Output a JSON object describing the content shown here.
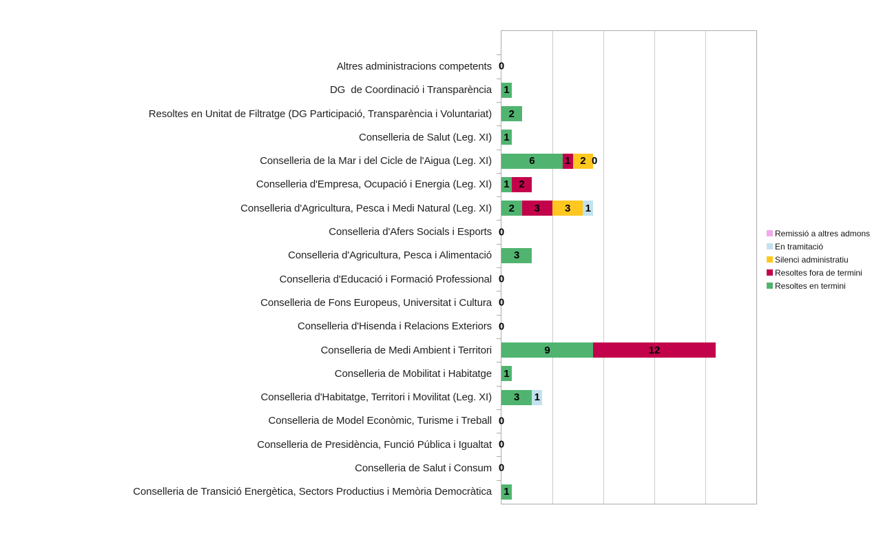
{
  "chart_data": {
    "type": "bar",
    "orientation": "horizontal",
    "stacked": true,
    "title": "",
    "xlabel": "",
    "ylabel": "",
    "xlim": [
      0,
      25
    ],
    "x_grid_interval": 5,
    "grid": true,
    "legend_position": "right-middle",
    "categories": [
      "Altres administracions competents",
      "DG  de Coordinació i Transparència",
      "Resoltes en Unitat de Filtratge (DG Participació, Transparència i Voluntariat)",
      "Conselleria de Salut (Leg. XI)",
      "Conselleria de la Mar i del Cicle de l'Aigua (Leg. XI)",
      "Conselleria d'Empresa, Ocupació i Energia (Leg. XI)",
      "Conselleria d'Agricultura, Pesca i Medi Natural (Leg. XI)",
      "Conselleria d'Afers Socials i Esports",
      "Conselleria d'Agricultura, Pesca i Alimentació",
      "Conselleria d'Educació i Formació Professional",
      "Conselleria de Fons Europeus, Universitat i Cultura",
      "Conselleria d'Hisenda i Relacions Exteriors",
      "Conselleria de Medi Ambient i Territori",
      "Conselleria de Mobilitat i Habitatge",
      "Conselleria d'Habitatge, Territori i Movilitat (Leg. XI)",
      "Conselleria de Model Econòmic, Turisme i Treball",
      "Conselleria de Presidència, Funció Pública i Igualtat",
      "Conselleria de Salut i Consum",
      "Conselleria de Transició Energètica, Sectors Productius i Memòria Democràtica"
    ],
    "series": [
      {
        "name": "Resoltes en termini",
        "color": "#50B470",
        "values": [
          0,
          1,
          2,
          1,
          6,
          1,
          2,
          0,
          3,
          0,
          0,
          0,
          9,
          1,
          3,
          0,
          0,
          0,
          1
        ]
      },
      {
        "name": "Resoltes fora de termini",
        "color": "#C2024B",
        "values": [
          0,
          0,
          0,
          0,
          1,
          2,
          3,
          0,
          0,
          0,
          0,
          0,
          12,
          0,
          0,
          0,
          0,
          0,
          0
        ]
      },
      {
        "name": "Silenci administratiu",
        "color": "#FFC71F",
        "values": [
          0,
          0,
          0,
          0,
          2,
          0,
          3,
          0,
          0,
          0,
          0,
          0,
          0,
          0,
          0,
          0,
          0,
          0,
          0
        ]
      },
      {
        "name": "En tramitació",
        "color": "#C2E2ED",
        "values": [
          0,
          0,
          0,
          0,
          0,
          0,
          1,
          0,
          0,
          0,
          0,
          0,
          0,
          0,
          1,
          0,
          0,
          0,
          0
        ]
      },
      {
        "name": "Remissió a altres admons",
        "color": "#F2A8EC",
        "values": [
          0,
          0,
          0,
          0,
          0,
          0,
          0,
          0,
          0,
          0,
          0,
          0,
          0,
          0,
          0,
          0,
          0,
          0,
          0
        ]
      }
    ],
    "legend": [
      {
        "label": "Remissió a altres admons",
        "color": "#F2A8EC"
      },
      {
        "label": "En tramitació",
        "color": "#C2E2ED"
      },
      {
        "label": "Silenci administratiu",
        "color": "#FFC71F"
      },
      {
        "label": "Resoltes fora de termini",
        "color": "#C2024B"
      },
      {
        "label": "Resoltes en termini",
        "color": "#50B470"
      }
    ],
    "zero_value_labels": {
      "at_axis_rows": [
        0,
        7,
        9,
        10,
        11,
        15,
        16,
        17
      ],
      "after_stack_rows": [
        4
      ],
      "label_text": "0"
    },
    "colors": {
      "plot_border": "#ababab",
      "gridline": "#cbcbcb",
      "category_text": "#1f1f1f",
      "value_label_text": "#000000",
      "background": "#ffffff"
    }
  }
}
